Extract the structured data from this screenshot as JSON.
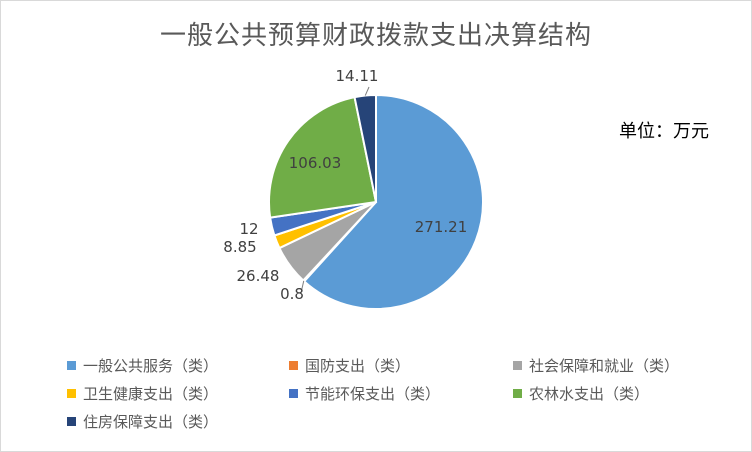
{
  "unit_note": "单位：万元",
  "colors": [
    "#5b9bd5",
    "#ed7d31",
    "#a5a5a5",
    "#ffc000",
    "#4472c4",
    "#70ad47",
    "#264478"
  ],
  "chart_data": {
    "type": "pie",
    "title": "一般公共预算财政拨款支出决算结构",
    "categories": [
      "一般公共服务（类）",
      "国防支出（类）",
      "社会保障和就业（类）",
      "卫生健康支出（类）",
      "节能环保支出（类）",
      "农林水支出（类）",
      "住房保障支出（类）"
    ],
    "values": [
      271.21,
      0.8,
      26.48,
      8.85,
      12,
      106.03,
      14.11
    ],
    "data_labels": [
      "271.21",
      "0.8",
      "26.48",
      "8.85",
      "12",
      "106.03",
      "14.11"
    ],
    "legend_position": "bottom"
  }
}
